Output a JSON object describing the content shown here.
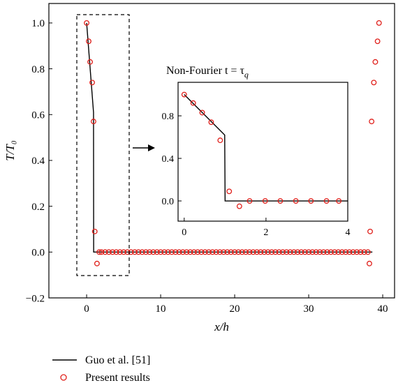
{
  "chart_data": [
    {
      "type": "line-scatter",
      "x_label": "x/h",
      "y_label": "T/T₀",
      "xlim": [
        -5.1,
        41.6
      ],
      "ylim": [
        -0.2,
        1.085
      ],
      "xticks": [
        0,
        10,
        20,
        30,
        40
      ],
      "yticks": [
        {
          "value": -0.2,
          "label": "−0.2"
        },
        {
          "value": 0,
          "label": "0.0"
        },
        {
          "value": 0.2,
          "label": "0.2"
        },
        {
          "value": 0.4,
          "label": "0.4"
        },
        {
          "value": 0.6,
          "label": "0.6"
        },
        {
          "value": 0.8,
          "label": "0.8"
        },
        {
          "value": 1,
          "label": "1.0"
        }
      ],
      "legend": "bottom-left-outside",
      "series": [
        {
          "name": "Guo et al. [51]",
          "type": "line",
          "color": "#000000",
          "x": [
            0,
            0.93,
            0.95,
            38.6
          ],
          "values": [
            1,
            0.61,
            0,
            0
          ]
        },
        {
          "name": "Present results",
          "type": "scatter",
          "color": "#e0201b",
          "x": [
            0,
            0.28,
            0.47,
            0.75,
            0.93,
            1.1,
            1.4,
            1.7,
            2,
            2.5,
            3,
            3.5,
            4,
            4.5,
            5,
            5.5,
            6,
            6.5,
            7,
            7.5,
            8,
            8.5,
            9,
            9.5,
            10,
            10.5,
            11,
            11.5,
            12,
            12.5,
            13,
            13.5,
            14,
            14.5,
            15,
            15.5,
            16,
            16.5,
            17,
            17.5,
            18,
            18.5,
            19,
            19.5,
            20,
            20.5,
            21,
            21.5,
            22,
            22.5,
            23,
            23.5,
            24,
            24.5,
            25,
            25.5,
            26,
            26.5,
            27,
            27.5,
            28,
            28.5,
            29,
            29.5,
            30,
            30.5,
            31,
            31.5,
            32,
            32.5,
            33,
            33.5,
            34,
            34.5,
            35,
            35.5,
            36,
            36.5,
            37,
            37.5,
            38,
            38.2,
            38.3,
            38.5,
            38.8,
            39,
            39.3,
            39.5
          ],
          "values": [
            1,
            0.92,
            0.83,
            0.74,
            0.57,
            0.09,
            -0.05,
            0,
            0,
            0,
            0,
            0,
            0,
            0,
            0,
            0,
            0,
            0,
            0,
            0,
            0,
            0,
            0,
            0,
            0,
            0,
            0,
            0,
            0,
            0,
            0,
            0,
            0,
            0,
            0,
            0,
            0,
            0,
            0,
            0,
            0,
            0,
            0,
            0,
            0,
            0,
            0,
            0,
            0,
            0,
            0,
            0,
            0,
            0,
            0,
            0,
            0,
            0,
            0,
            0,
            0,
            0,
            0,
            0,
            0,
            0,
            0,
            0,
            0,
            0,
            0,
            0,
            0,
            0,
            0,
            0,
            0,
            0,
            0,
            0,
            0,
            -0.05,
            0.09,
            0.57,
            0.74,
            0.83,
            0.92,
            1
          ]
        }
      ]
    },
    {
      "type": "line-scatter",
      "title": "Non-Fourier t = τ",
      "title_subscript": "q",
      "xlim": [
        -0.15,
        4
      ],
      "ylim": [
        -0.19,
        1.115
      ],
      "xticks": [
        0,
        2,
        4
      ],
      "yticks": [
        {
          "value": 0,
          "label": "0.0"
        },
        {
          "value": 0.4,
          "label": "0.4"
        },
        {
          "value": 0.8,
          "label": "0.8"
        }
      ],
      "series": [
        {
          "type": "line",
          "color": "#000000",
          "x": [
            0,
            0.99,
            1,
            4
          ],
          "values": [
            1,
            0.62,
            0,
            0
          ]
        },
        {
          "type": "scatter",
          "color": "#e0201b",
          "x": [
            0,
            0.22,
            0.44,
            0.66,
            0.88,
            1.1,
            1.35,
            1.6,
            1.98,
            2.35,
            2.73,
            3.1,
            3.48,
            3.78
          ],
          "values": [
            1,
            0.92,
            0.83,
            0.74,
            0.57,
            0.09,
            -0.05,
            0,
            0,
            0,
            0,
            0,
            0,
            0
          ]
        }
      ]
    }
  ]
}
